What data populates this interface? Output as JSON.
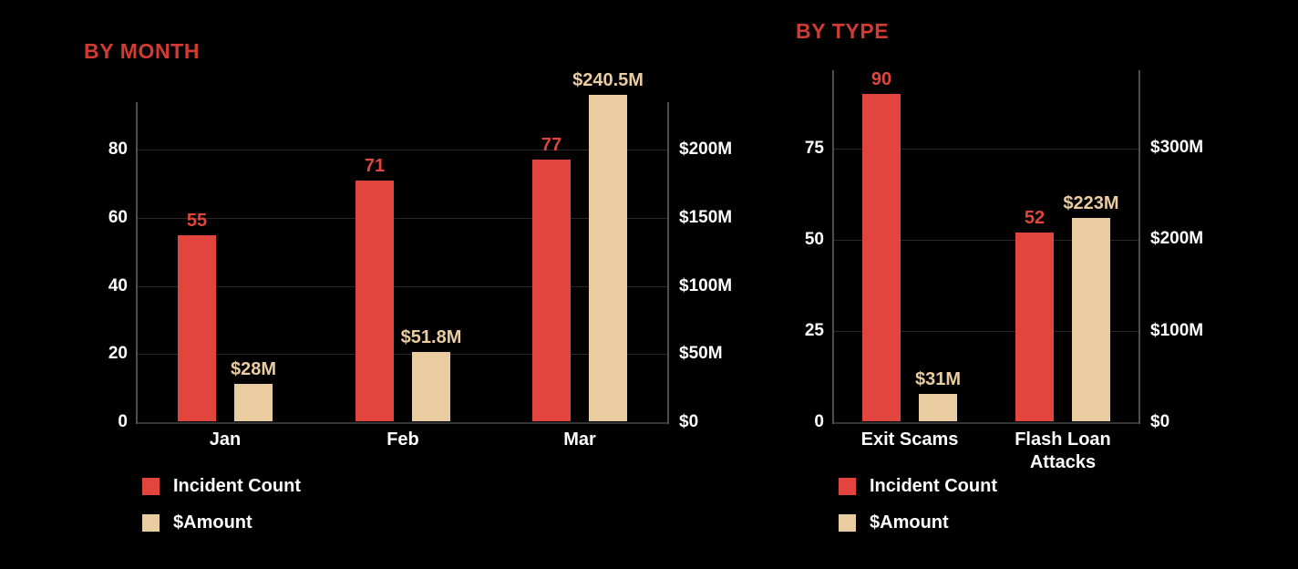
{
  "page": {
    "background": "#000000"
  },
  "colors": {
    "title_red": "#D23B33",
    "incident_red": "#E2453D",
    "amount_tan": "#E9CCA0",
    "text_white": "#FFFFFF",
    "gridline": "#282828",
    "axis_line": "#4E4E4E",
    "baseline": "#343434"
  },
  "chart_data": [
    {
      "type": "bar",
      "title": "BY MONTH",
      "categories": [
        "Jan",
        "Feb",
        "Mar"
      ],
      "series": [
        {
          "name": "Incident Count",
          "axis": "left",
          "color": "#E2453D",
          "values": [
            55,
            71,
            77
          ],
          "value_labels": [
            "55",
            "71",
            "77"
          ]
        },
        {
          "name": "$Amount",
          "axis": "right",
          "color": "#E9CCA0",
          "values": [
            28,
            51.8,
            240.5
          ],
          "value_labels": [
            "$28M",
            "$51.8M",
            "$240.5M"
          ]
        }
      ],
      "left_axis": {
        "tick_labels": [
          "0",
          "20",
          "40",
          "60",
          "80"
        ],
        "tick_values": [
          0,
          20,
          40,
          60,
          80
        ],
        "range": [
          0,
          94
        ]
      },
      "right_axis": {
        "tick_labels": [
          "$0",
          "$50M",
          "$100M",
          "$150M",
          "$200M"
        ],
        "tick_values": [
          0,
          50,
          100,
          150,
          200
        ],
        "range": [
          0,
          235
        ]
      },
      "grid": "horizontal",
      "legend": {
        "position": "bottom-left",
        "items": [
          "Incident Count",
          "$Amount"
        ]
      }
    },
    {
      "type": "bar",
      "title": "BY TYPE",
      "categories": [
        "Exit Scams",
        "Flash Loan Attacks"
      ],
      "series": [
        {
          "name": "Incident Count",
          "axis": "left",
          "color": "#E2453D",
          "values": [
            90,
            52
          ],
          "value_labels": [
            "90",
            "52"
          ]
        },
        {
          "name": "$Amount",
          "axis": "right",
          "color": "#E9CCA0",
          "values": [
            31,
            223
          ],
          "value_labels": [
            "$31M",
            "$223M"
          ]
        }
      ],
      "left_axis": {
        "tick_labels": [
          "0",
          "25",
          "50",
          "75"
        ],
        "tick_values": [
          0,
          25,
          50,
          75
        ],
        "range": [
          0,
          96
        ]
      },
      "right_axis": {
        "tick_labels": [
          "$0",
          "$100M",
          "$200M",
          "$300M"
        ],
        "tick_values": [
          0,
          100,
          200,
          300
        ],
        "range": [
          0,
          385
        ]
      },
      "grid": "horizontal",
      "legend": {
        "position": "bottom-left",
        "items": [
          "Incident Count",
          "$Amount"
        ]
      }
    }
  ]
}
